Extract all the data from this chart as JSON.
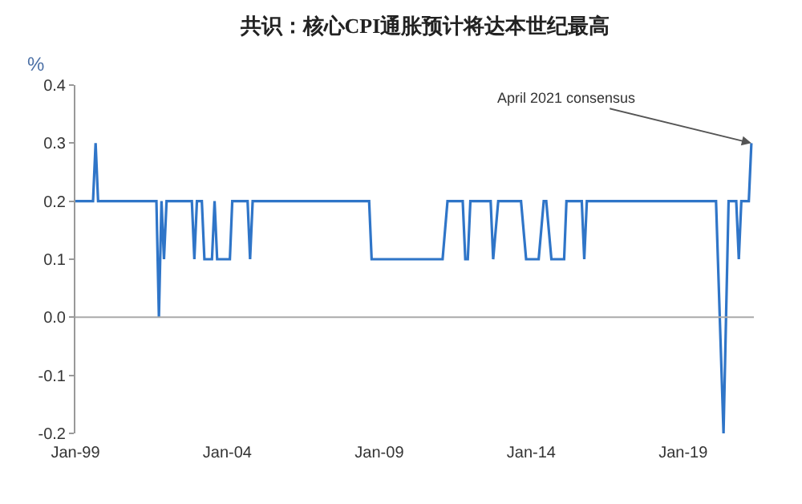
{
  "chart_data": {
    "type": "line",
    "title": "共识：核心CPI通胀预计将达本世纪最高",
    "ylabel": "%",
    "x": [
      "1999-01",
      "1999-08",
      "1999-09",
      "1999-10",
      "2001-09",
      "2001-10",
      "2001-11",
      "2001-12",
      "2002-01",
      "2002-11",
      "2002-12",
      "2003-01",
      "2003-03",
      "2003-04",
      "2003-07",
      "2003-08",
      "2003-09",
      "2004-02",
      "2004-03",
      "2004-09",
      "2004-10",
      "2004-11",
      "2008-09",
      "2008-10",
      "2011-02",
      "2011-04",
      "2011-10",
      "2011-11",
      "2011-12",
      "2012-01",
      "2012-09",
      "2012-10",
      "2012-12",
      "2013-09",
      "2013-11",
      "2014-04",
      "2014-06",
      "2014-07",
      "2014-09",
      "2015-02",
      "2015-03",
      "2015-09",
      "2015-10",
      "2015-11",
      "2020-02",
      "2020-05",
      "2020-07",
      "2020-10",
      "2020-11",
      "2020-12",
      "2021-03",
      "2021-04"
    ],
    "series": [
      {
        "color": "#2f75c8",
        "values": [
          0.2,
          0.2,
          0.3,
          0.2,
          0.2,
          0,
          0.2,
          0.1,
          0.2,
          0.2,
          0.1,
          0.2,
          0.2,
          0.1,
          0.1,
          0.2,
          0.1,
          0.1,
          0.2,
          0.2,
          0.1,
          0.2,
          0.2,
          0.1,
          0.1,
          0.2,
          0.2,
          0.1,
          0.1,
          0.2,
          0.2,
          0.1,
          0.2,
          0.2,
          0.1,
          0.1,
          0.2,
          0.2,
          0.1,
          0.1,
          0.2,
          0.2,
          0.1,
          0.2,
          0.2,
          -0.2,
          0.2,
          0.2,
          0.1,
          0.2,
          0.2,
          0.3
        ]
      }
    ],
    "xlim": [
      "1999-01",
      "2021-05"
    ],
    "xticks": [
      {
        "value": "1999-01",
        "label": "Jan-99"
      },
      {
        "value": "2004-01",
        "label": "Jan-04"
      },
      {
        "value": "2009-01",
        "label": "Jan-09"
      },
      {
        "value": "2014-01",
        "label": "Jan-14"
      },
      {
        "value": "2019-01",
        "label": "Jan-19"
      }
    ],
    "ylim": [
      -0.2,
      0.4
    ],
    "yticks": [
      -0.2,
      -0.1,
      {
        "value": 0,
        "label": "0.0"
      },
      0.1,
      0.2,
      0.3,
      0.4
    ],
    "annotations": [
      {
        "text": "April 2021 consensus",
        "x": "2021-04",
        "y": 0.3
      }
    ],
    "ref_lines": [
      {
        "axis": "y",
        "value": 0,
        "color": "#aaaaaa"
      }
    ],
    "grid": false,
    "marker": "none",
    "line_style": "solid"
  }
}
